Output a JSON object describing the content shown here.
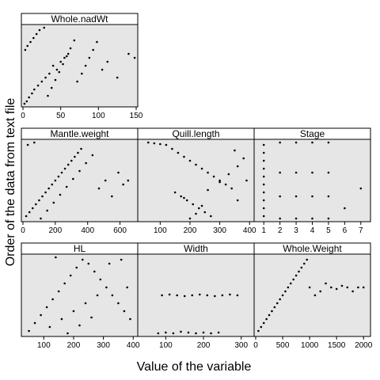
{
  "chart_data": {
    "type": "scatter",
    "xlabel": "Value of the variable",
    "ylabel": "Order of the data from text file",
    "panel_background": "#e6e6e6",
    "strip_background": "#ffffff",
    "point_color": "#000000",
    "panels": [
      {
        "name": "Whole.nadWt",
        "xlim": [
          0,
          150
        ],
        "xticks": [
          0,
          50,
          100,
          150
        ],
        "points": [
          [
            2,
            0.02
          ],
          [
            5,
            0.05
          ],
          [
            8,
            0.1
          ],
          [
            12,
            0.15
          ],
          [
            15,
            0.2
          ],
          [
            20,
            0.25
          ],
          [
            25,
            0.3
          ],
          [
            30,
            0.35
          ],
          [
            35,
            0.4
          ],
          [
            40,
            0.5
          ],
          [
            45,
            0.45
          ],
          [
            50,
            0.55
          ],
          [
            55,
            0.6
          ],
          [
            60,
            0.65
          ],
          [
            3,
            0.7
          ],
          [
            6,
            0.75
          ],
          [
            10,
            0.8
          ],
          [
            14,
            0.85
          ],
          [
            18,
            0.9
          ],
          [
            22,
            0.95
          ],
          [
            28,
            0.98
          ],
          [
            33,
            0.12
          ],
          [
            38,
            0.22
          ],
          [
            43,
            0.32
          ],
          [
            48,
            0.42
          ],
          [
            53,
            0.52
          ],
          [
            58,
            0.62
          ],
          [
            63,
            0.72
          ],
          [
            68,
            0.82
          ],
          [
            72,
            0.3
          ],
          [
            78,
            0.4
          ],
          [
            83,
            0.5
          ],
          [
            88,
            0.6
          ],
          [
            93,
            0.7
          ],
          [
            98,
            0.8
          ],
          [
            105,
            0.45
          ],
          [
            112,
            0.55
          ],
          [
            125,
            0.35
          ],
          [
            140,
            0.65
          ],
          [
            148,
            0.6
          ]
        ]
      },
      {
        "name": "Mantle.weight",
        "xlim": [
          0,
          700
        ],
        "xticks": [
          0,
          200,
          400,
          600
        ],
        "points": [
          [
            20,
            0.05
          ],
          [
            40,
            0.1
          ],
          [
            60,
            0.15
          ],
          [
            80,
            0.2
          ],
          [
            100,
            0.25
          ],
          [
            120,
            0.3
          ],
          [
            140,
            0.35
          ],
          [
            160,
            0.4
          ],
          [
            180,
            0.45
          ],
          [
            200,
            0.5
          ],
          [
            220,
            0.55
          ],
          [
            240,
            0.6
          ],
          [
            260,
            0.65
          ],
          [
            280,
            0.7
          ],
          [
            300,
            0.75
          ],
          [
            320,
            0.8
          ],
          [
            340,
            0.85
          ],
          [
            360,
            0.9
          ],
          [
            30,
            0.95
          ],
          [
            70,
            0.98
          ],
          [
            110,
            0.02
          ],
          [
            150,
            0.12
          ],
          [
            190,
            0.22
          ],
          [
            230,
            0.32
          ],
          [
            270,
            0.42
          ],
          [
            310,
            0.52
          ],
          [
            350,
            0.62
          ],
          [
            390,
            0.72
          ],
          [
            430,
            0.82
          ],
          [
            470,
            0.4
          ],
          [
            510,
            0.5
          ],
          [
            550,
            0.3
          ],
          [
            590,
            0.6
          ],
          [
            620,
            0.45
          ],
          [
            650,
            0.5
          ]
        ]
      },
      {
        "name": "Quill.length",
        "xlim": [
          30,
          410
        ],
        "xticks": [
          100,
          200,
          300,
          400
        ],
        "points": [
          [
            60,
            0.98
          ],
          [
            80,
            0.97
          ],
          [
            100,
            0.96
          ],
          [
            120,
            0.95
          ],
          [
            140,
            0.9
          ],
          [
            160,
            0.85
          ],
          [
            180,
            0.8
          ],
          [
            200,
            0.75
          ],
          [
            220,
            0.7
          ],
          [
            240,
            0.65
          ],
          [
            260,
            0.6
          ],
          [
            280,
            0.55
          ],
          [
            300,
            0.5
          ],
          [
            320,
            0.45
          ],
          [
            340,
            0.4
          ],
          [
            150,
            0.35
          ],
          [
            170,
            0.3
          ],
          [
            190,
            0.25
          ],
          [
            210,
            0.2
          ],
          [
            230,
            0.15
          ],
          [
            250,
            0.1
          ],
          [
            270,
            0.05
          ],
          [
            200,
            0.02
          ],
          [
            220,
            0.08
          ],
          [
            240,
            0.18
          ],
          [
            180,
            0.28
          ],
          [
            260,
            0.38
          ],
          [
            300,
            0.48
          ],
          [
            330,
            0.58
          ],
          [
            360,
            0.68
          ],
          [
            380,
            0.78
          ],
          [
            390,
            0.5
          ],
          [
            360,
            0.25
          ],
          [
            350,
            0.88
          ]
        ]
      },
      {
        "name": "Stage",
        "xlim": [
          0.5,
          7.5
        ],
        "xticks": [
          1,
          2,
          3,
          4,
          5,
          6,
          7
        ],
        "points": [
          [
            1,
            0.05
          ],
          [
            1,
            0.15
          ],
          [
            1,
            0.25
          ],
          [
            1,
            0.35
          ],
          [
            1,
            0.45
          ],
          [
            1,
            0.55
          ],
          [
            1,
            0.65
          ],
          [
            1,
            0.75
          ],
          [
            1,
            0.85
          ],
          [
            1,
            0.95
          ],
          [
            2,
            0.02
          ],
          [
            2,
            0.3
          ],
          [
            2,
            0.6
          ],
          [
            2,
            0.98
          ],
          [
            3,
            0.02
          ],
          [
            3,
            0.3
          ],
          [
            3,
            0.6
          ],
          [
            3,
            0.98
          ],
          [
            4,
            0.02
          ],
          [
            4,
            0.3
          ],
          [
            4,
            0.6
          ],
          [
            4,
            0.98
          ],
          [
            5,
            0.02
          ],
          [
            5,
            0.3
          ],
          [
            5,
            0.6
          ],
          [
            5,
            0.98
          ],
          [
            6,
            0.15
          ],
          [
            7,
            0.4
          ]
        ]
      },
      {
        "name": "HL",
        "xlim": [
          30,
          410
        ],
        "xticks": [
          100,
          200,
          300,
          400
        ],
        "points": [
          [
            50,
            0.05
          ],
          [
            70,
            0.15
          ],
          [
            90,
            0.25
          ],
          [
            110,
            0.35
          ],
          [
            130,
            0.45
          ],
          [
            150,
            0.55
          ],
          [
            170,
            0.65
          ],
          [
            190,
            0.75
          ],
          [
            210,
            0.85
          ],
          [
            230,
            0.95
          ],
          [
            250,
            0.9
          ],
          [
            270,
            0.8
          ],
          [
            290,
            0.7
          ],
          [
            310,
            0.6
          ],
          [
            330,
            0.5
          ],
          [
            350,
            0.4
          ],
          [
            370,
            0.3
          ],
          [
            390,
            0.2
          ],
          [
            120,
            0.1
          ],
          [
            160,
            0.2
          ],
          [
            200,
            0.3
          ],
          [
            240,
            0.4
          ],
          [
            280,
            0.5
          ],
          [
            320,
            0.9
          ],
          [
            360,
            0.95
          ],
          [
            380,
            0.6
          ],
          [
            140,
            0.98
          ],
          [
            180,
            0.02
          ],
          [
            220,
            0.12
          ],
          [
            260,
            0.22
          ]
        ]
      },
      {
        "name": "Width",
        "xlim": [
          30,
          330
        ],
        "xticks": [
          100,
          200,
          300
        ],
        "points": [
          [
            80,
            0.02
          ],
          [
            100,
            0.03
          ],
          [
            120,
            0.02
          ],
          [
            140,
            0.04
          ],
          [
            160,
            0.03
          ],
          [
            180,
            0.02
          ],
          [
            200,
            0.03
          ],
          [
            220,
            0.02
          ],
          [
            240,
            0.03
          ],
          [
            90,
            0.5
          ],
          [
            110,
            0.51
          ],
          [
            130,
            0.5
          ],
          [
            150,
            0.49
          ],
          [
            170,
            0.5
          ],
          [
            190,
            0.51
          ],
          [
            210,
            0.5
          ],
          [
            230,
            0.49
          ],
          [
            250,
            0.5
          ],
          [
            270,
            0.51
          ],
          [
            290,
            0.5
          ]
        ]
      },
      {
        "name": "Whole.Weight",
        "xlim": [
          0,
          2100
        ],
        "xticks": [
          0,
          500,
          1000,
          1500,
          2000
        ],
        "points": [
          [
            50,
            0.05
          ],
          [
            100,
            0.1
          ],
          [
            150,
            0.15
          ],
          [
            200,
            0.2
          ],
          [
            250,
            0.25
          ],
          [
            300,
            0.3
          ],
          [
            350,
            0.35
          ],
          [
            400,
            0.4
          ],
          [
            450,
            0.45
          ],
          [
            500,
            0.5
          ],
          [
            550,
            0.55
          ],
          [
            600,
            0.6
          ],
          [
            650,
            0.65
          ],
          [
            700,
            0.7
          ],
          [
            750,
            0.75
          ],
          [
            800,
            0.8
          ],
          [
            850,
            0.85
          ],
          [
            900,
            0.9
          ],
          [
            950,
            0.95
          ],
          [
            1000,
            0.6
          ],
          [
            1100,
            0.5
          ],
          [
            1200,
            0.55
          ],
          [
            1300,
            0.65
          ],
          [
            1400,
            0.6
          ],
          [
            1500,
            0.58
          ],
          [
            1600,
            0.62
          ],
          [
            1700,
            0.6
          ],
          [
            1800,
            0.55
          ],
          [
            1900,
            0.6
          ],
          [
            2000,
            0.6
          ]
        ]
      }
    ]
  }
}
